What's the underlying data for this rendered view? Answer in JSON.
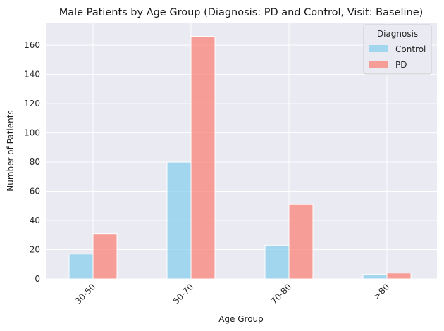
{
  "chart_data": {
    "type": "bar",
    "title": "Male Patients by Age Group (Diagnosis: PD and Control, Visit: Baseline)",
    "xlabel": "Age Group",
    "ylabel": "Number of Patients",
    "categories": [
      "30-50",
      "50-70",
      "70-80",
      ">80"
    ],
    "series": [
      {
        "name": "Control",
        "values": [
          17,
          80,
          23,
          3
        ],
        "color": "#87ceeb"
      },
      {
        "name": "PD",
        "values": [
          31,
          166,
          51,
          4
        ],
        "color": "#fa8072"
      }
    ],
    "ylim": [
      0,
      175
    ],
    "yticks": [
      0,
      20,
      40,
      60,
      80,
      100,
      120,
      140,
      160
    ],
    "grid": true,
    "legend": {
      "title": "Diagnosis",
      "placement": "top-right"
    },
    "background": "#eaeaf2"
  }
}
